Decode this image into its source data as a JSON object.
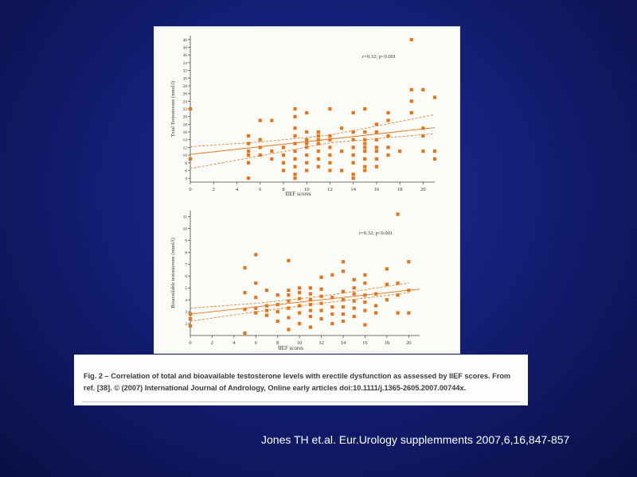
{
  "colors": {
    "background": "#121c6e",
    "points": "#e8731a",
    "lines": "#e8731a",
    "panel": "#fbfbf7",
    "citation_text": "#ffffff"
  },
  "chart_data": [
    {
      "type": "scatter",
      "title": "",
      "xlabel": "IIEF scores",
      "ylabel": "Total Testosterone (nmol/l)",
      "annotation": "r=0.32; p<0.001",
      "xlim": [
        0,
        21
      ],
      "ylim": [
        3,
        41
      ],
      "xticks": [
        0,
        2,
        4,
        6,
        8,
        10,
        12,
        14,
        16,
        18,
        20
      ],
      "yticks": [
        4,
        6,
        8,
        10,
        12,
        14,
        16,
        18,
        20,
        22,
        24,
        26,
        28,
        30,
        32,
        34,
        36,
        38,
        40
      ],
      "grid": false,
      "regression": {
        "intercept": 10.2,
        "slope": 0.33
      },
      "ci_lower": [
        [
          0,
          6.5
        ],
        [
          6,
          9.8
        ],
        [
          12,
          13.2
        ],
        [
          21,
          15.6
        ]
      ],
      "ci_upper": [
        [
          0,
          12.2
        ],
        [
          6,
          13.4
        ],
        [
          12,
          15.2
        ],
        [
          21,
          20.5
        ]
      ],
      "x": [
        0,
        0,
        5,
        5,
        5,
        5,
        5,
        5,
        6,
        6,
        6,
        6,
        7,
        7,
        7,
        8,
        8,
        8,
        8,
        9,
        9,
        9,
        9,
        9,
        9,
        9,
        9,
        9,
        9,
        10,
        10,
        10,
        10,
        10,
        10,
        10,
        10,
        11,
        11,
        11,
        11,
        11,
        11,
        11,
        12,
        12,
        12,
        12,
        12,
        12,
        12,
        13,
        13,
        13,
        14,
        14,
        14,
        14,
        14,
        14,
        14,
        14,
        15,
        15,
        15,
        15,
        15,
        15,
        15,
        15,
        15,
        16,
        16,
        16,
        16,
        16,
        16,
        16,
        17,
        17,
        17,
        17,
        17,
        18,
        19,
        19,
        19,
        19,
        20,
        20,
        20,
        20,
        21,
        21,
        21
      ],
      "y": [
        22,
        9,
        4,
        8,
        10,
        11,
        13,
        15,
        10,
        12,
        14,
        19,
        9,
        11,
        19,
        6,
        8,
        10,
        12,
        5,
        7,
        9,
        11,
        13,
        15,
        17,
        20,
        22,
        4,
        6,
        8,
        10,
        12,
        13,
        14,
        16,
        21,
        7,
        9,
        11,
        13,
        14,
        15,
        16,
        6,
        8,
        10,
        12,
        14,
        15,
        22,
        6,
        11,
        17,
        4,
        5,
        8,
        10,
        12,
        14,
        16,
        21,
        6,
        7,
        9,
        11,
        12,
        13,
        14,
        16,
        22,
        7,
        9,
        11,
        12,
        14,
        16,
        18,
        10,
        12,
        15,
        19,
        21,
        11,
        21,
        24,
        27,
        40,
        11,
        15,
        17,
        27,
        9,
        11,
        25
      ]
    },
    {
      "type": "scatter",
      "title": "",
      "xlabel": "IIEF scores",
      "ylabel": "Bioavailable testosterone (nmol/l)",
      "annotation": "r=0.32; p<0.001",
      "xlim": [
        0,
        21
      ],
      "ylim": [
        1,
        11.5
      ],
      "xticks": [
        0,
        2,
        4,
        6,
        8,
        10,
        12,
        14,
        16,
        18,
        20
      ],
      "yticks": [
        2,
        3,
        4,
        5,
        6,
        7,
        8,
        9,
        10,
        11
      ],
      "grid": false,
      "regression": {
        "intercept": 2.8,
        "slope": 0.1
      },
      "ci_lower": [
        [
          0,
          2.2
        ],
        [
          6,
          3.0
        ],
        [
          12,
          3.7
        ],
        [
          20,
          4.6
        ]
      ],
      "ci_upper": [
        [
          0,
          3.3
        ],
        [
          6,
          3.7
        ],
        [
          12,
          4.3
        ],
        [
          20,
          5.4
        ]
      ],
      "x": [
        0,
        0,
        0,
        5,
        5,
        5,
        5,
        6,
        6,
        6,
        6,
        6,
        7,
        7,
        7,
        7,
        8,
        8,
        8,
        8,
        9,
        9,
        9,
        9,
        9,
        9,
        9,
        10,
        10,
        10,
        10,
        10,
        10,
        11,
        11,
        11,
        11,
        11,
        11,
        11,
        12,
        12,
        12,
        12,
        12,
        12,
        13,
        13,
        13,
        13,
        13,
        14,
        14,
        14,
        14,
        14,
        14,
        14,
        15,
        15,
        15,
        15,
        15,
        15,
        16,
        16,
        16,
        16,
        16,
        16,
        17,
        17,
        17,
        18,
        18,
        18,
        19,
        19,
        19,
        19,
        20,
        20,
        20
      ],
      "y": [
        2.4,
        2.8,
        1.8,
        1.2,
        3.2,
        4.6,
        6.7,
        2.9,
        3.3,
        4.2,
        5.4,
        7.8,
        2.7,
        3.1,
        3.5,
        4.8,
        2.2,
        3.0,
        3.6,
        4.4,
        1.5,
        2.5,
        3.3,
        3.9,
        4.4,
        4.8,
        7.3,
        2.0,
        2.9,
        3.5,
        4.1,
        4.6,
        5.0,
        1.7,
        2.6,
        3.1,
        3.6,
        4.0,
        4.5,
        5.0,
        2.4,
        3.1,
        3.7,
        4.3,
        4.9,
        5.9,
        2.0,
        2.8,
        3.4,
        4.2,
        6.1,
        2.2,
        2.8,
        3.4,
        4.0,
        4.7,
        6.4,
        7.2,
        2.6,
        3.3,
        3.9,
        4.5,
        5.0,
        5.7,
        1.9,
        3.1,
        3.8,
        4.4,
        5.4,
        6.1,
        2.9,
        3.5,
        4.5,
        4.0,
        5.3,
        6.6,
        2.9,
        4.4,
        5.4,
        11.2,
        2.9,
        4.8,
        7.2
      ]
    }
  ],
  "caption": {
    "text": "Fig. 2 – Correlation of total and bioavailable testosterone levels with erectile dysfunction as assessed by IIEF scores. From ref. [38]. © (2007) International Journal of Andrology, Online early articles doi:10.1111/j.1365-2605.2007.00744x."
  },
  "citation": "Jones TH et.al. Eur.Urology supplemments 2007,6,16,847-857"
}
